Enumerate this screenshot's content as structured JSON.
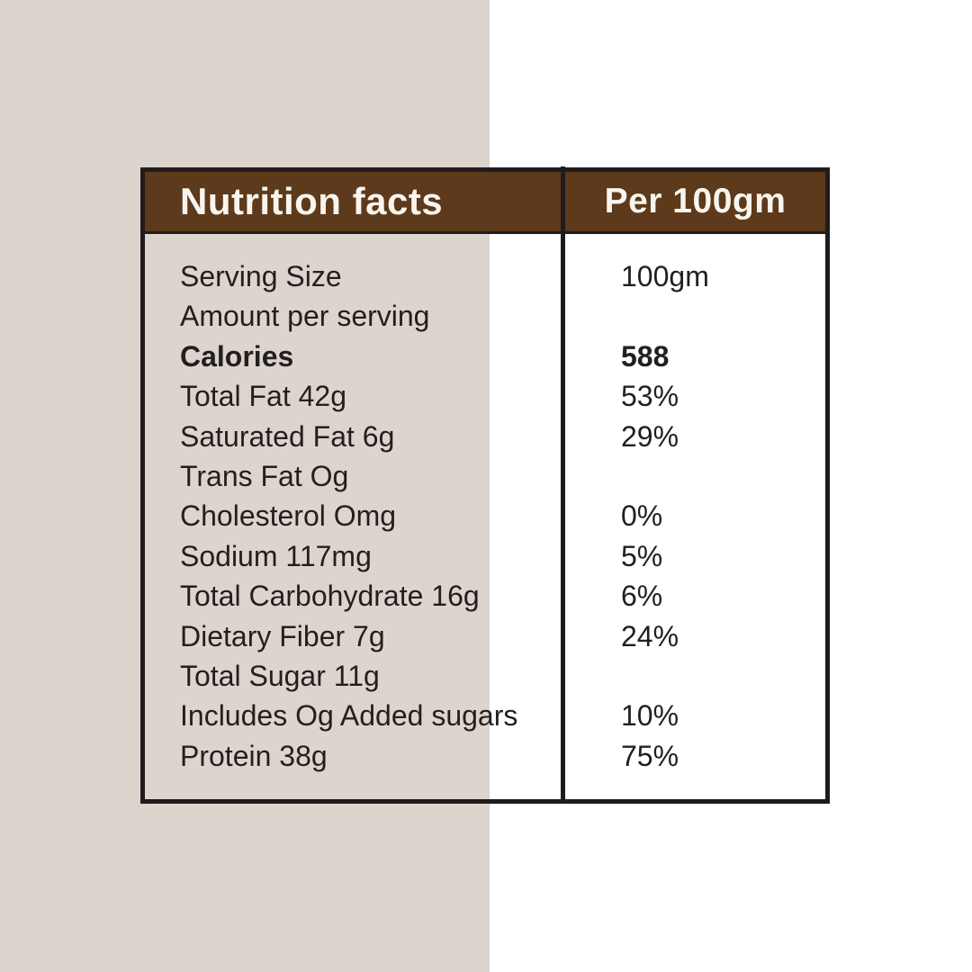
{
  "page": {
    "colors": {
      "left_panel_bg": "#ddd4cd",
      "right_panel_bg": "#ffffff",
      "header_bg": "#5d3a1b",
      "header_text": "#f9f5ee",
      "border": "#201c1d",
      "body_text": "#231f20"
    }
  },
  "table": {
    "header": {
      "title": "Nutrition facts",
      "column": "Per 100gm"
    },
    "rows": [
      {
        "label": "Serving Size",
        "value": "100gm",
        "bold": false
      },
      {
        "label": "Amount per serving",
        "value": "",
        "bold": false
      },
      {
        "label": "Calories",
        "value": "588",
        "bold": true
      },
      {
        "label": "Total Fat 42g",
        "value": "53%",
        "bold": false
      },
      {
        "label": "Saturated Fat 6g",
        "value": "29%",
        "bold": false
      },
      {
        "label": "Trans Fat Og",
        "value": "",
        "bold": false
      },
      {
        "label": "Cholesterol Omg",
        "value": "0%",
        "bold": false
      },
      {
        "label": "Sodium 117mg",
        "value": "5%",
        "bold": false
      },
      {
        "label": "Total Carbohydrate 16g",
        "value": "6%",
        "bold": false
      },
      {
        "label": "Dietary Fiber 7g",
        "value": "24%",
        "bold": false
      },
      {
        "label": "Total Sugar 11g",
        "value": "",
        "bold": false
      },
      {
        "label": "Includes Og Added sugars",
        "value": "10%",
        "bold": false
      },
      {
        "label": "Protein 38g",
        "value": "75%",
        "bold": false
      }
    ]
  }
}
